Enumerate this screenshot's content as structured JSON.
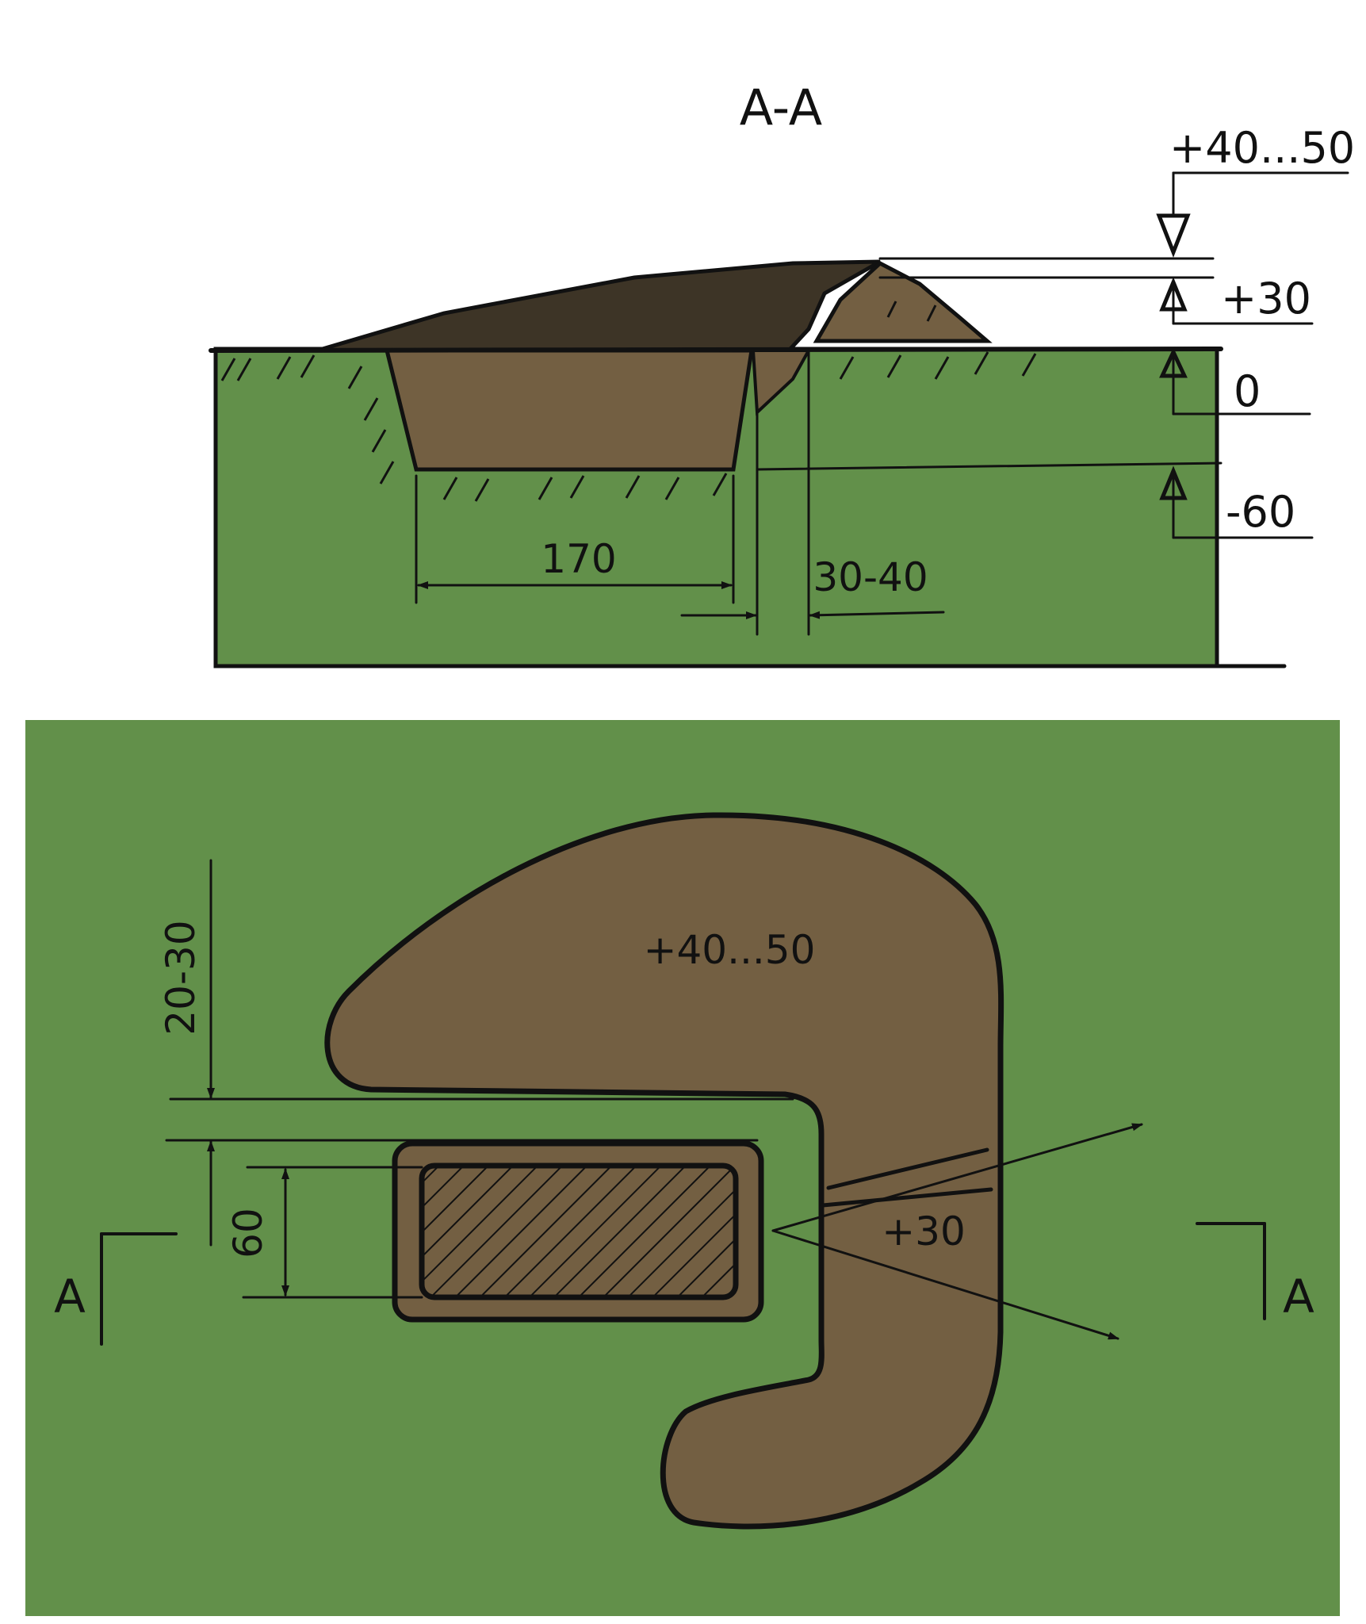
{
  "colors": {
    "grass": "#62904a",
    "soil": "#735f42",
    "soil_dark": "#3d3426",
    "ink": "#111111",
    "background": "#ffffff"
  },
  "section": {
    "title": "A-A",
    "levels": {
      "top": "+40...50",
      "middle": "+30",
      "ground": "0",
      "bottom": "-60"
    },
    "dims": {
      "width": "170",
      "gap": "30-40"
    }
  },
  "plan": {
    "mound_label": "+40...50",
    "lower_label": "+30",
    "dim_gap": "20-30",
    "dim_height": "60",
    "cut_left": "A",
    "cut_right": "A"
  }
}
